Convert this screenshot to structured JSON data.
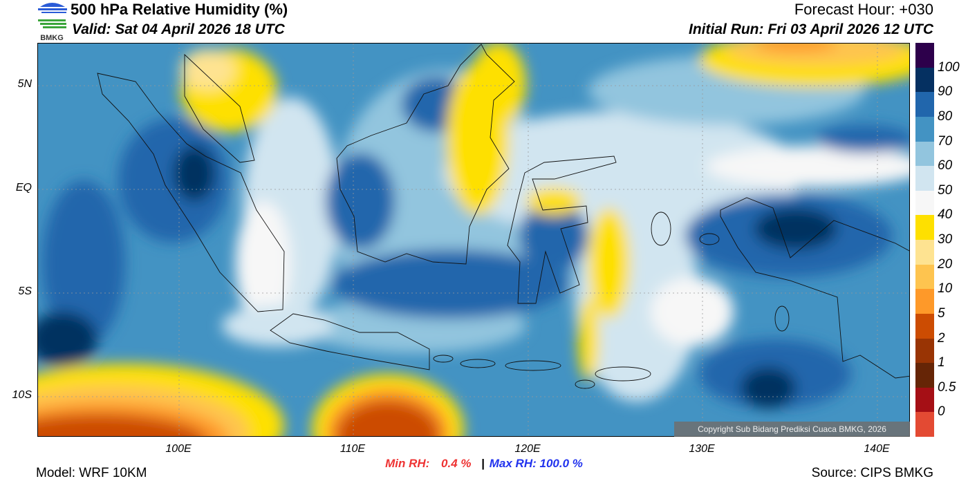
{
  "header": {
    "logo_text": "BMKG",
    "title": "500 hPa Relative Humidity (%)",
    "valid": "Valid: Sat 04 April 2026 18 UTC",
    "forecast_hour": "Forecast Hour: +030",
    "initial_run": "Initial Run: Fri 03 April 2026 12 UTC"
  },
  "map": {
    "lat_labels": [
      "5N",
      "EQ",
      "5S",
      "10S"
    ],
    "lon_labels": [
      "100E",
      "110E",
      "120E",
      "130E",
      "140E"
    ],
    "copyright": "Copyright Sub Bidang Prediksi Cuaca BMKG, 2026"
  },
  "colorbar": {
    "colors": [
      "#2d004b",
      "#053061",
      "#2166ac",
      "#4393c3",
      "#92c5de",
      "#d1e5f0",
      "#f7f7f7",
      "#fee000",
      "#fee391",
      "#fec44f",
      "#fe9929",
      "#cc4c02",
      "#993404",
      "#662506",
      "#a50f15",
      "#e34a33"
    ],
    "labels": [
      "100",
      "90",
      "80",
      "70",
      "60",
      "50",
      "40",
      "30",
      "20",
      "10",
      "5",
      "2",
      "1",
      "0.5",
      "0"
    ]
  },
  "stats": {
    "min_label": "Min RH:",
    "min_value": "0.4 %",
    "separator": "|",
    "max_label": "Max RH:",
    "max_value": "100.0 %",
    "min_color": "#ee3333",
    "max_color": "#2233ee"
  },
  "footer": {
    "model": "Model: WRF 10KM",
    "source": "Source: CIPS BMKG"
  }
}
